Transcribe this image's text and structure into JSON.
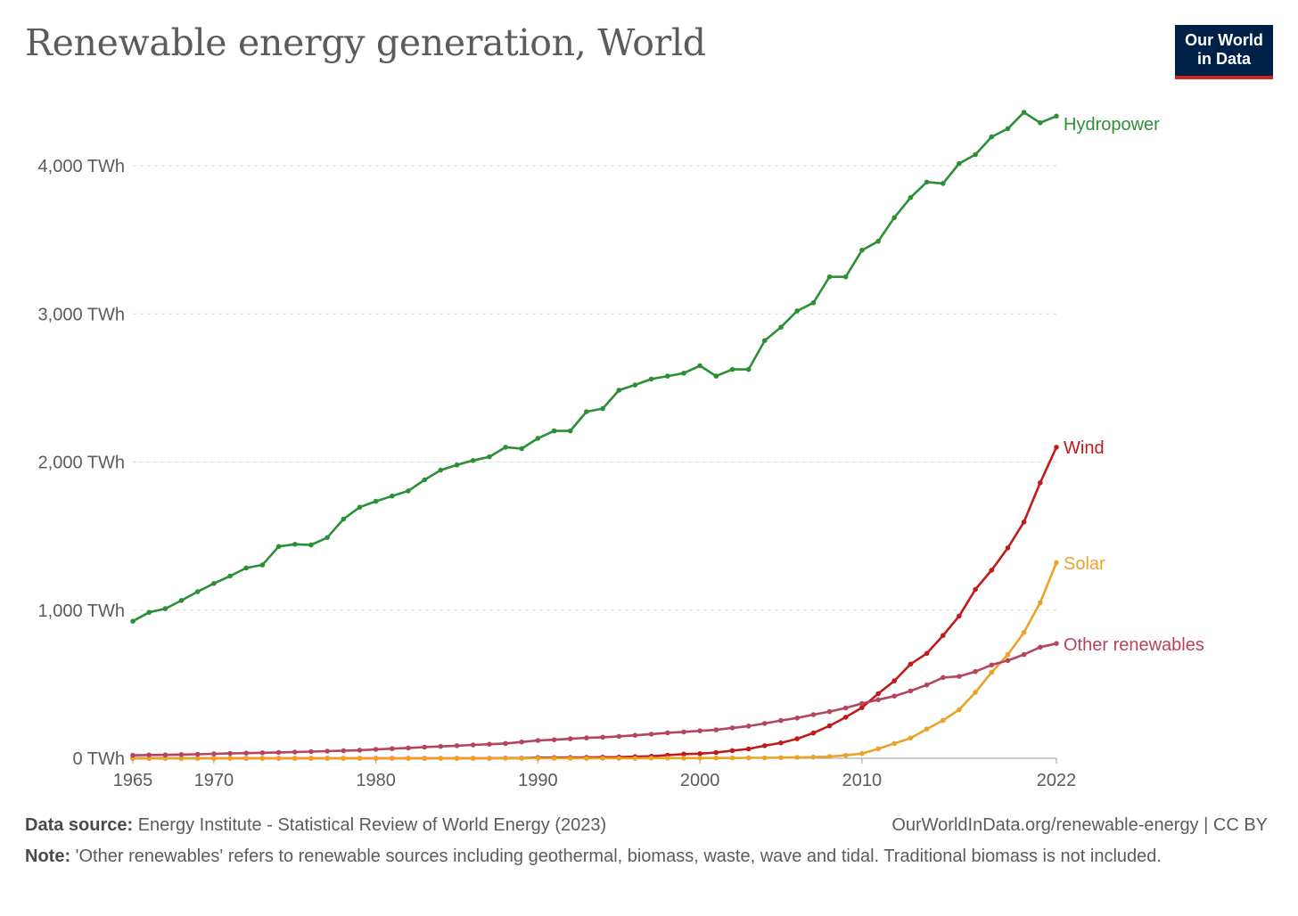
{
  "title": "Renewable energy generation, World",
  "logo": {
    "line1": "Our World",
    "line2": "in Data"
  },
  "footer": {
    "source_label": "Data source:",
    "source_text": "Energy Institute - Statistical Review of World Energy (2023)",
    "url": "OurWorldInData.org/renewable-energy | CC BY",
    "note_label": "Note:",
    "note_text": "'Other renewables' refers to renewable sources including geothermal, biomass, waste, wave and tidal. Traditional biomass is not included."
  },
  "chart_data": {
    "type": "line",
    "title": "Renewable energy generation, World",
    "x_ticks": [
      1965,
      1970,
      1980,
      1990,
      2000,
      2010,
      2022
    ],
    "y_ticks": [
      0,
      1000,
      2000,
      3000,
      4000
    ],
    "y_tick_labels": [
      "0 TWh",
      "1,000 TWh",
      "2,000 TWh",
      "3,000 TWh",
      "4,000 TWh"
    ],
    "xlim": [
      1965,
      2022
    ],
    "ylim": [
      0,
      4400
    ],
    "grid": "horizontal dashed",
    "legend": "labels at line ends",
    "x": [
      1965,
      1966,
      1967,
      1968,
      1969,
      1970,
      1971,
      1972,
      1973,
      1974,
      1975,
      1976,
      1977,
      1978,
      1979,
      1980,
      1981,
      1982,
      1983,
      1984,
      1985,
      1986,
      1987,
      1988,
      1989,
      1990,
      1991,
      1992,
      1993,
      1994,
      1995,
      1996,
      1997,
      1998,
      1999,
      2000,
      2001,
      2002,
      2003,
      2004,
      2005,
      2006,
      2007,
      2008,
      2009,
      2010,
      2011,
      2012,
      2013,
      2014,
      2015,
      2016,
      2017,
      2018,
      2019,
      2020,
      2021,
      2022
    ],
    "series": [
      {
        "name": "Hydropower",
        "color": "#2c8f35",
        "values": [
          925,
          985,
          1010,
          1065,
          1125,
          1180,
          1230,
          1285,
          1305,
          1430,
          1445,
          1440,
          1490,
          1615,
          1695,
          1735,
          1770,
          1805,
          1880,
          1945,
          1980,
          2010,
          2035,
          2100,
          2090,
          2160,
          2210,
          2210,
          2340,
          2360,
          2485,
          2520,
          2560,
          2580,
          2600,
          2650,
          2580,
          2625,
          2625,
          2820,
          2910,
          3020,
          3075,
          3250,
          3250,
          3430,
          3490,
          3650,
          3785,
          3890,
          3880,
          4015,
          4075,
          4195,
          4250,
          4360,
          4290,
          4335
        ]
      },
      {
        "name": "Wind",
        "color": "#c01a1a",
        "values": [
          0,
          0,
          0,
          0,
          0,
          0,
          0,
          0,
          0,
          0,
          0,
          0,
          0,
          0,
          0,
          0,
          0,
          0,
          0,
          0,
          0,
          0,
          0,
          1,
          1,
          4,
          4,
          5,
          6,
          7,
          8,
          11,
          14,
          21,
          28,
          31,
          39,
          52,
          63,
          85,
          104,
          132,
          171,
          219,
          277,
          342,
          436,
          523,
          636,
          708,
          829,
          960,
          1140,
          1270,
          1420,
          1595,
          1860,
          2100
        ]
      },
      {
        "name": "Solar",
        "color": "#eaa228",
        "values": [
          0,
          0,
          0,
          0,
          0,
          0,
          0,
          0,
          0,
          0,
          0,
          0,
          0,
          0,
          0,
          0,
          0,
          0,
          0,
          0,
          0,
          0,
          0,
          0,
          0,
          0,
          0,
          0,
          0,
          0,
          0,
          0,
          1,
          1,
          1,
          1,
          2,
          2,
          3,
          3,
          4,
          6,
          8,
          12,
          20,
          32,
          64,
          100,
          136,
          197,
          256,
          328,
          445,
          580,
          700,
          850,
          1050,
          1320
        ]
      },
      {
        "name": "Other renewables",
        "color": "#b5445e",
        "values": [
          20,
          22,
          23,
          25,
          27,
          30,
          33,
          35,
          37,
          40,
          42,
          45,
          48,
          51,
          55,
          60,
          65,
          70,
          75,
          80,
          85,
          90,
          95,
          100,
          110,
          120,
          125,
          132,
          138,
          142,
          148,
          155,
          163,
          172,
          178,
          185,
          192,
          205,
          217,
          235,
          255,
          272,
          295,
          315,
          340,
          370,
          395,
          420,
          455,
          495,
          545,
          553,
          585,
          630,
          660,
          700,
          750,
          775
        ]
      }
    ]
  }
}
